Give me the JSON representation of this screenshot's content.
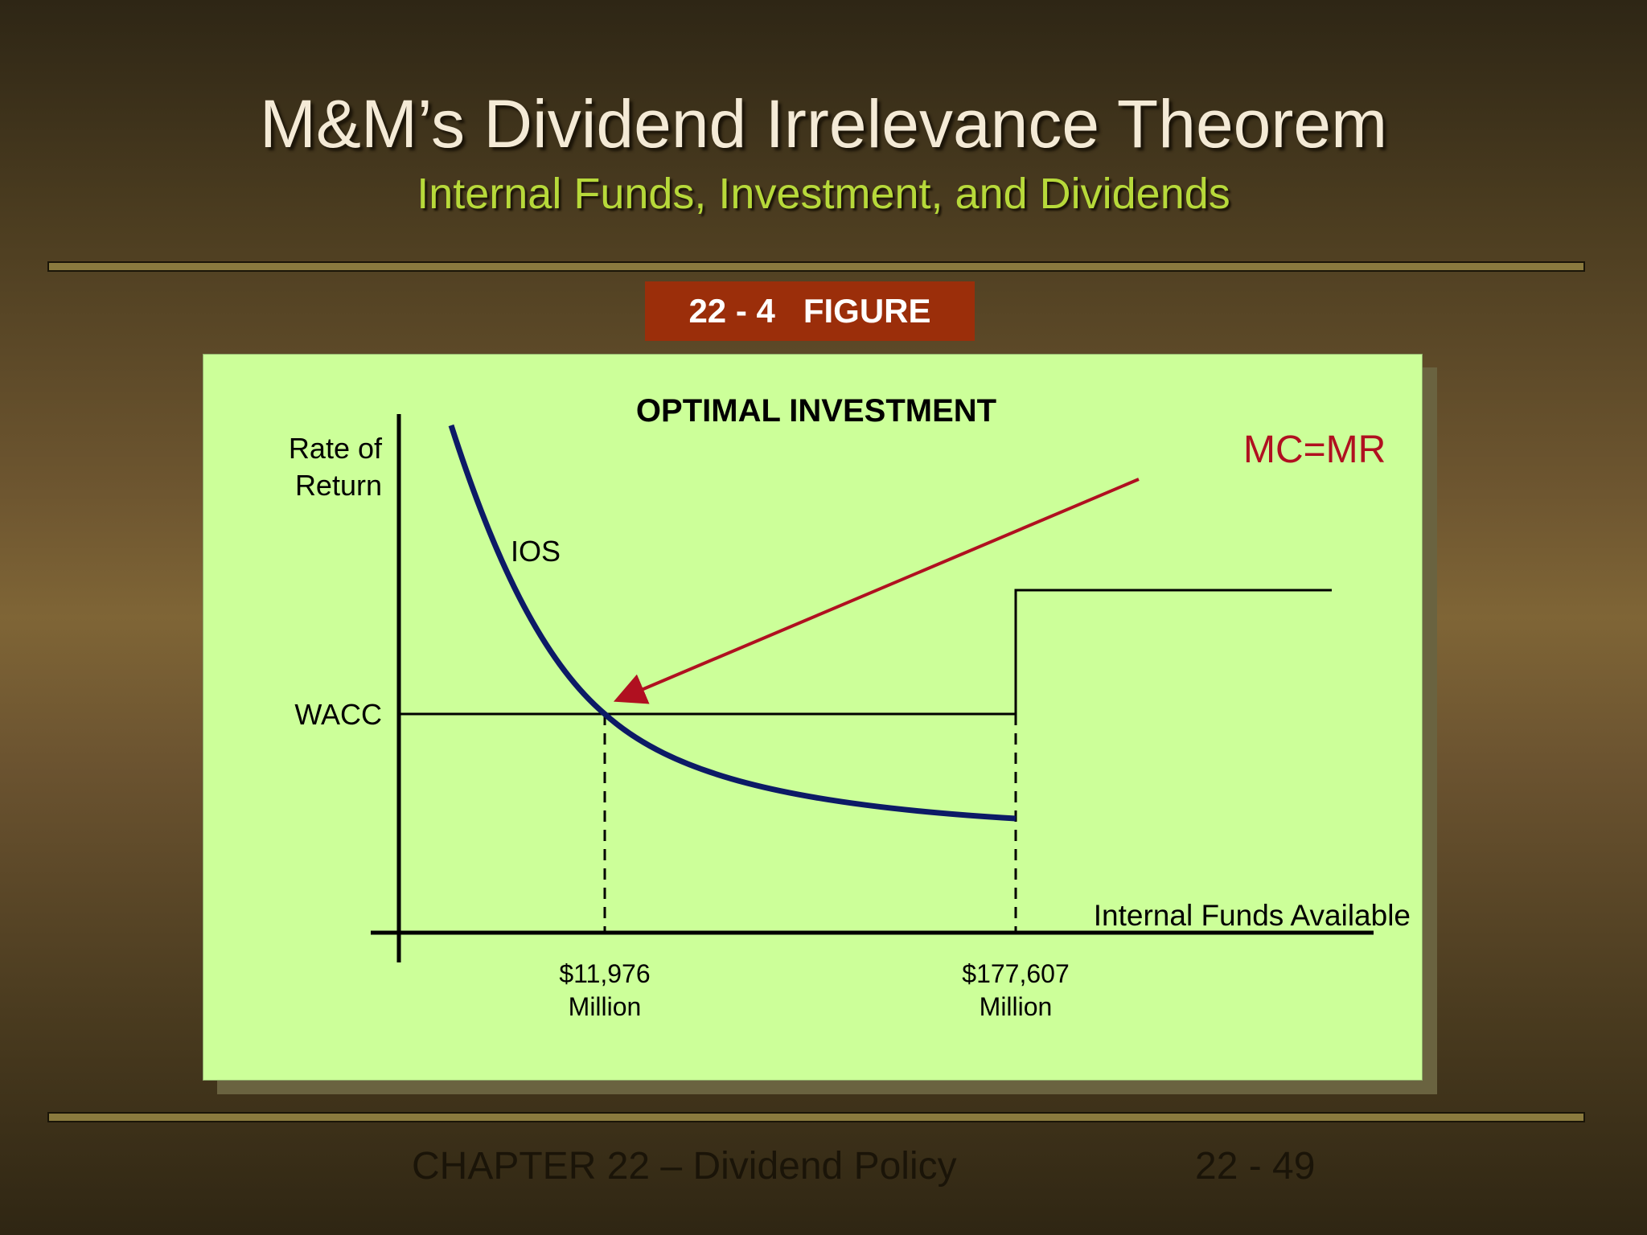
{
  "slide": {
    "title": "M&M’s Dividend Irrelevance Theorem",
    "subtitle": "Internal Funds, Investment, and Dividends",
    "figure_tag": "22 - 4   FIGURE",
    "footer_chapter": "CHAPTER 22 – Dividend Policy",
    "footer_page": "22 - 49"
  },
  "chart_data": {
    "type": "line",
    "title": "OPTIMAL INVESTMENT",
    "ylabel": [
      "Rate of",
      "Return"
    ],
    "xlabel": "Internal Funds Available",
    "y_tick_labels": [
      "WACC"
    ],
    "x_tick_labels": [
      {
        "value": 11976,
        "lines": [
          "$11,976",
          "Million"
        ]
      },
      {
        "value": 177607,
        "lines": [
          "$177,607",
          "Million"
        ]
      }
    ],
    "series": [
      {
        "name": "IOS",
        "color": "#0c1a66"
      },
      {
        "name": "",
        "color": "#111111"
      }
    ],
    "annotations": [
      {
        "text": "MC=MR",
        "color": "#b01020"
      }
    ],
    "grid": false,
    "legend": "none"
  }
}
